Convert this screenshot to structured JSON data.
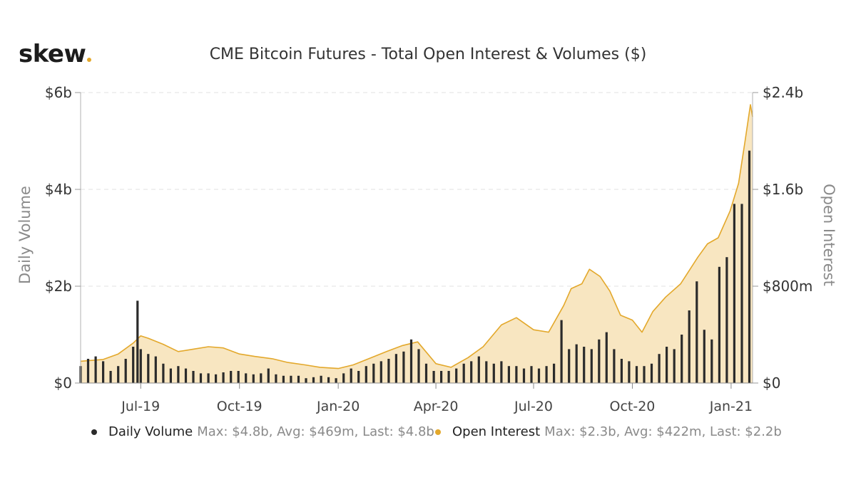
{
  "logo": {
    "text": "skew",
    "dot_color": "#e3a82b"
  },
  "chart_data": {
    "type": "bar+area",
    "title": "CME Bitcoin Futures - Total Open Interest & Volumes ($)",
    "x_ticks": [
      "Jul-19",
      "Oct-19",
      "Jan-20",
      "Apr-20",
      "Jul-20",
      "Oct-20",
      "Jan-21"
    ],
    "x_range": [
      "2019-05-06",
      "2021-01-21"
    ],
    "y_left": {
      "label": "Daily Volume",
      "unit": "billion USD",
      "ylim": [
        0,
        6
      ],
      "ticks": [
        0,
        2,
        4,
        6
      ],
      "tick_labels": [
        "$0",
        "$2b",
        "$4b",
        "$6b"
      ]
    },
    "y_right": {
      "label": "Open Interest",
      "unit": "million USD",
      "ylim": [
        0,
        2400
      ],
      "ticks": [
        0,
        800,
        1600,
        2400
      ],
      "tick_labels": [
        "$0",
        "$800m",
        "$1.6b",
        "$2.4b"
      ]
    },
    "grid": "horizontal dashed",
    "legend_position": "bottom",
    "series": [
      {
        "name": "Daily Volume",
        "kind": "bar",
        "axis": "left",
        "color": "#2b2b2b",
        "stats": "Max: $4.8b, Avg: $469m, Last: $4.8b",
        "points": [
          [
            "2019-05-06",
            0.35
          ],
          [
            "2019-05-13",
            0.5
          ],
          [
            "2019-05-20",
            0.55
          ],
          [
            "2019-05-27",
            0.45
          ],
          [
            "2019-06-03",
            0.25
          ],
          [
            "2019-06-10",
            0.35
          ],
          [
            "2019-06-17",
            0.5
          ],
          [
            "2019-06-24",
            0.75
          ],
          [
            "2019-06-28",
            1.7
          ],
          [
            "2019-07-01",
            0.7
          ],
          [
            "2019-07-08",
            0.6
          ],
          [
            "2019-07-15",
            0.55
          ],
          [
            "2019-07-22",
            0.4
          ],
          [
            "2019-07-29",
            0.3
          ],
          [
            "2019-08-05",
            0.35
          ],
          [
            "2019-08-12",
            0.3
          ],
          [
            "2019-08-19",
            0.25
          ],
          [
            "2019-08-26",
            0.2
          ],
          [
            "2019-09-02",
            0.2
          ],
          [
            "2019-09-09",
            0.18
          ],
          [
            "2019-09-16",
            0.22
          ],
          [
            "2019-09-23",
            0.25
          ],
          [
            "2019-09-30",
            0.25
          ],
          [
            "2019-10-07",
            0.2
          ],
          [
            "2019-10-14",
            0.18
          ],
          [
            "2019-10-21",
            0.2
          ],
          [
            "2019-10-28",
            0.3
          ],
          [
            "2019-11-04",
            0.18
          ],
          [
            "2019-11-11",
            0.15
          ],
          [
            "2019-11-18",
            0.15
          ],
          [
            "2019-11-25",
            0.15
          ],
          [
            "2019-12-02",
            0.1
          ],
          [
            "2019-12-09",
            0.12
          ],
          [
            "2019-12-16",
            0.15
          ],
          [
            "2019-12-23",
            0.12
          ],
          [
            "2019-12-30",
            0.1
          ],
          [
            "2020-01-06",
            0.2
          ],
          [
            "2020-01-13",
            0.3
          ],
          [
            "2020-01-20",
            0.25
          ],
          [
            "2020-01-27",
            0.35
          ],
          [
            "2020-02-03",
            0.4
          ],
          [
            "2020-02-10",
            0.45
          ],
          [
            "2020-02-17",
            0.5
          ],
          [
            "2020-02-24",
            0.6
          ],
          [
            "2020-03-02",
            0.65
          ],
          [
            "2020-03-09",
            0.9
          ],
          [
            "2020-03-16",
            0.7
          ],
          [
            "2020-03-23",
            0.4
          ],
          [
            "2020-03-30",
            0.25
          ],
          [
            "2020-04-06",
            0.25
          ],
          [
            "2020-04-13",
            0.25
          ],
          [
            "2020-04-20",
            0.3
          ],
          [
            "2020-04-27",
            0.4
          ],
          [
            "2020-05-04",
            0.45
          ],
          [
            "2020-05-11",
            0.55
          ],
          [
            "2020-05-18",
            0.45
          ],
          [
            "2020-05-25",
            0.4
          ],
          [
            "2020-06-01",
            0.45
          ],
          [
            "2020-06-08",
            0.35
          ],
          [
            "2020-06-15",
            0.35
          ],
          [
            "2020-06-22",
            0.3
          ],
          [
            "2020-06-29",
            0.35
          ],
          [
            "2020-07-06",
            0.3
          ],
          [
            "2020-07-13",
            0.35
          ],
          [
            "2020-07-20",
            0.4
          ],
          [
            "2020-07-27",
            1.3
          ],
          [
            "2020-08-03",
            0.7
          ],
          [
            "2020-08-10",
            0.8
          ],
          [
            "2020-08-17",
            0.75
          ],
          [
            "2020-08-24",
            0.7
          ],
          [
            "2020-08-31",
            0.9
          ],
          [
            "2020-09-07",
            1.05
          ],
          [
            "2020-09-14",
            0.7
          ],
          [
            "2020-09-21",
            0.5
          ],
          [
            "2020-09-28",
            0.45
          ],
          [
            "2020-10-05",
            0.35
          ],
          [
            "2020-10-12",
            0.35
          ],
          [
            "2020-10-19",
            0.4
          ],
          [
            "2020-10-26",
            0.6
          ],
          [
            "2020-11-02",
            0.75
          ],
          [
            "2020-11-09",
            0.7
          ],
          [
            "2020-11-16",
            1.0
          ],
          [
            "2020-11-23",
            1.5
          ],
          [
            "2020-11-30",
            2.1
          ],
          [
            "2020-12-07",
            1.1
          ],
          [
            "2020-12-14",
            0.9
          ],
          [
            "2020-12-21",
            2.4
          ],
          [
            "2020-12-28",
            2.6
          ],
          [
            "2021-01-04",
            3.7
          ],
          [
            "2021-01-11",
            3.7
          ],
          [
            "2021-01-18",
            4.8
          ]
        ]
      },
      {
        "name": "Open Interest",
        "kind": "area",
        "axis": "right",
        "color": "#e3a82b",
        "fill": "#f8e6c1",
        "stats": "Max: $2.3b, Avg: $422m, Last: $2.2b",
        "points": [
          [
            "2019-05-06",
            180
          ],
          [
            "2019-05-27",
            195
          ],
          [
            "2019-06-10",
            240
          ],
          [
            "2019-06-24",
            330
          ],
          [
            "2019-07-01",
            390
          ],
          [
            "2019-07-08",
            370
          ],
          [
            "2019-07-22",
            320
          ],
          [
            "2019-08-05",
            260
          ],
          [
            "2019-08-19",
            280
          ],
          [
            "2019-09-02",
            300
          ],
          [
            "2019-09-16",
            290
          ],
          [
            "2019-10-01",
            240
          ],
          [
            "2019-10-15",
            220
          ],
          [
            "2019-11-01",
            200
          ],
          [
            "2019-11-15",
            170
          ],
          [
            "2019-12-01",
            150
          ],
          [
            "2019-12-15",
            130
          ],
          [
            "2020-01-01",
            120
          ],
          [
            "2020-01-15",
            150
          ],
          [
            "2020-02-01",
            210
          ],
          [
            "2020-02-15",
            260
          ],
          [
            "2020-03-01",
            310
          ],
          [
            "2020-03-15",
            340
          ],
          [
            "2020-04-01",
            160
          ],
          [
            "2020-04-15",
            130
          ],
          [
            "2020-05-01",
            210
          ],
          [
            "2020-05-15",
            300
          ],
          [
            "2020-06-01",
            480
          ],
          [
            "2020-06-15",
            540
          ],
          [
            "2020-07-01",
            440
          ],
          [
            "2020-07-15",
            420
          ],
          [
            "2020-07-29",
            640
          ],
          [
            "2020-08-05",
            780
          ],
          [
            "2020-08-15",
            820
          ],
          [
            "2020-08-22",
            940
          ],
          [
            "2020-09-01",
            880
          ],
          [
            "2020-09-10",
            760
          ],
          [
            "2020-09-20",
            560
          ],
          [
            "2020-10-01",
            520
          ],
          [
            "2020-10-10",
            420
          ],
          [
            "2020-10-20",
            590
          ],
          [
            "2020-11-01",
            710
          ],
          [
            "2020-11-15",
            820
          ],
          [
            "2020-12-01",
            1040
          ],
          [
            "2020-12-10",
            1150
          ],
          [
            "2020-12-20",
            1200
          ],
          [
            "2020-12-31",
            1420
          ],
          [
            "2021-01-08",
            1650
          ],
          [
            "2021-01-14",
            2000
          ],
          [
            "2021-01-19",
            2300
          ],
          [
            "2021-01-21",
            2200
          ]
        ]
      }
    ]
  }
}
